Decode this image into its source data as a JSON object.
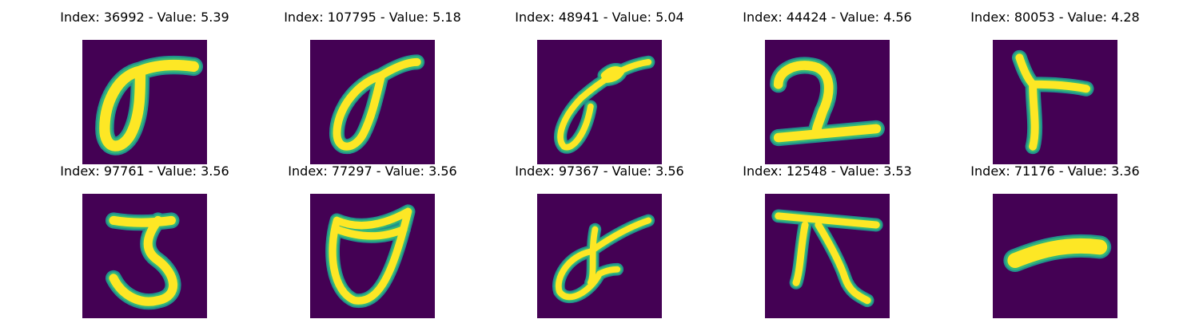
{
  "figure": {
    "panels": [
      {
        "title": "Index: 36992 - Value: 5.39",
        "glyph": "sigma"
      },
      {
        "title": "Index: 107795 - Value: 5.18",
        "glyph": "sigma"
      },
      {
        "title": "Index: 48941 - Value: 5.04",
        "glyph": "sigma-loop"
      },
      {
        "title": "Index: 44424 - Value: 4.56",
        "glyph": "two"
      },
      {
        "title": "Index: 80053 - Value: 4.28",
        "glyph": "r"
      },
      {
        "title": "Index: 97761 - Value: 3.56",
        "glyph": "five"
      },
      {
        "title": "Index: 77297 - Value: 3.56",
        "glyph": "cup"
      },
      {
        "title": "Index: 97367 - Value: 3.56",
        "glyph": "sigma-cross"
      },
      {
        "title": "Index: 12548 - Value: 3.53",
        "glyph": "pi"
      },
      {
        "title": "Index: 71176 - Value: 3.36",
        "glyph": "dash"
      }
    ],
    "colors": {
      "background": "#440154",
      "stroke_core": "#fde725",
      "stroke_edge": "#35b779",
      "stroke_halo": "#21918c"
    }
  }
}
